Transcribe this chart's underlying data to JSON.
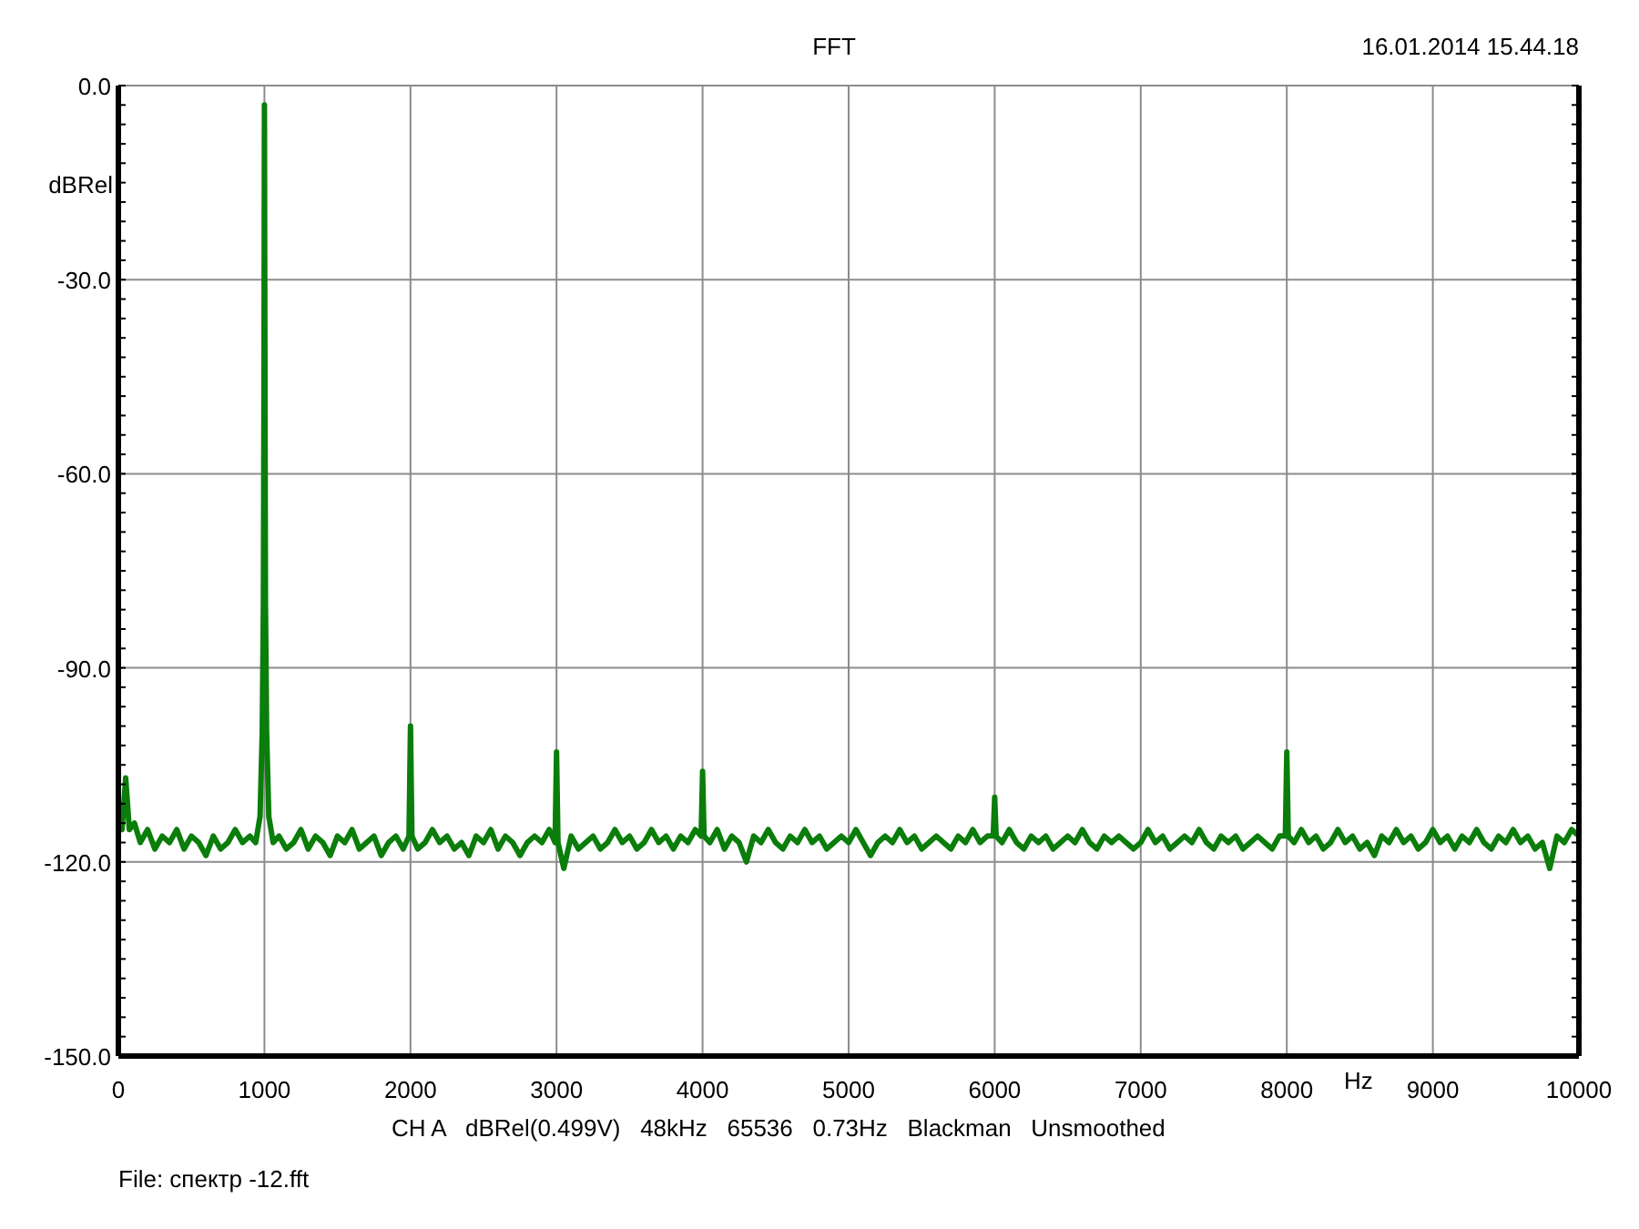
{
  "chart_data": {
    "type": "line",
    "title": "FFT",
    "xlabel": "Hz",
    "ylabel": "dBRel",
    "annotations": [
      "16.01.2014 15.44.18",
      "CH A   dBRel(0.499V)   48kHz   65536   0.73Hz   Blackman   Unsmoothed",
      "File: спектр -12.fft"
    ],
    "x": [
      0,
      25,
      50,
      75,
      110,
      150,
      200,
      250,
      300,
      350,
      400,
      450,
      500,
      550,
      600,
      650,
      700,
      750,
      800,
      850,
      900,
      940,
      970,
      985,
      993,
      997,
      1000,
      1003,
      1007,
      1015,
      1030,
      1060,
      1100,
      1150,
      1200,
      1250,
      1300,
      1350,
      1400,
      1450,
      1500,
      1550,
      1600,
      1650,
      1700,
      1750,
      1800,
      1850,
      1900,
      1950,
      1990,
      2000,
      2010,
      2050,
      2100,
      2150,
      2200,
      2250,
      2300,
      2350,
      2400,
      2450,
      2500,
      2550,
      2600,
      2650,
      2700,
      2750,
      2800,
      2850,
      2900,
      2950,
      2990,
      3000,
      3010,
      3050,
      3100,
      3150,
      3200,
      3250,
      3300,
      3350,
      3400,
      3450,
      3500,
      3550,
      3600,
      3650,
      3700,
      3750,
      3800,
      3850,
      3900,
      3950,
      3990,
      4000,
      4010,
      4050,
      4100,
      4150,
      4200,
      4250,
      4300,
      4350,
      4400,
      4450,
      4500,
      4550,
      4600,
      4650,
      4700,
      4750,
      4800,
      4850,
      4900,
      4950,
      5000,
      5050,
      5100,
      5150,
      5200,
      5250,
      5300,
      5350,
      5400,
      5450,
      5500,
      5550,
      5600,
      5650,
      5700,
      5750,
      5800,
      5850,
      5900,
      5950,
      5990,
      6000,
      6010,
      6050,
      6100,
      6150,
      6200,
      6250,
      6300,
      6350,
      6400,
      6450,
      6500,
      6550,
      6600,
      6650,
      6700,
      6750,
      6800,
      6850,
      6900,
      6950,
      7000,
      7050,
      7100,
      7150,
      7200,
      7250,
      7300,
      7350,
      7400,
      7450,
      7500,
      7550,
      7600,
      7650,
      7700,
      7750,
      7800,
      7850,
      7900,
      7950,
      7990,
      8000,
      8010,
      8050,
      8100,
      8150,
      8200,
      8250,
      8300,
      8350,
      8400,
      8450,
      8500,
      8550,
      8600,
      8650,
      8700,
      8750,
      8800,
      8850,
      8900,
      8950,
      9000,
      9050,
      9100,
      9150,
      9200,
      9250,
      9300,
      9350,
      9400,
      9450,
      9500,
      9550,
      9600,
      9650,
      9700,
      9750,
      9800,
      9850,
      9900,
      9950,
      10000
    ],
    "values": [
      -113,
      -115,
      -107,
      -115,
      -114,
      -117,
      -115,
      -118,
      -116,
      -117,
      -115,
      -118,
      -116,
      -117,
      -119,
      -116,
      -118,
      -117,
      -115,
      -117,
      -116,
      -117,
      -113,
      -100,
      -80,
      -45,
      -3,
      -38,
      -80,
      -100,
      -113,
      -117,
      -116,
      -118,
      -117,
      -115,
      -118,
      -116,
      -117,
      -119,
      -116,
      -117,
      -115,
      -118,
      -117,
      -116,
      -119,
      -117,
      -116,
      -118,
      -116,
      -99,
      -116,
      -118,
      -117,
      -115,
      -117,
      -116,
      -118,
      -117,
      -119,
      -116,
      -117,
      -115,
      -118,
      -116,
      -117,
      -119,
      -117,
      -116,
      -117,
      -115,
      -117,
      -103,
      -117,
      -121,
      -116,
      -118,
      -117,
      -116,
      -118,
      -117,
      -115,
      -117,
      -116,
      -118,
      -117,
      -115,
      -117,
      -116,
      -118,
      -116,
      -117,
      -115,
      -116,
      -106,
      -116,
      -117,
      -115,
      -118,
      -116,
      -117,
      -120,
      -116,
      -117,
      -115,
      -117,
      -118,
      -116,
      -117,
      -115,
      -117,
      -116,
      -118,
      -117,
      -116,
      -117,
      -115,
      -117,
      -119,
      -117,
      -116,
      -117,
      -115,
      -117,
      -116,
      -118,
      -117,
      -116,
      -117,
      -118,
      -116,
      -117,
      -115,
      -117,
      -116,
      -116,
      -110,
      -116,
      -117,
      -115,
      -117,
      -118,
      -116,
      -117,
      -116,
      -118,
      -117,
      -116,
      -117,
      -115,
      -117,
      -118,
      -116,
      -117,
      -116,
      -117,
      -118,
      -117,
      -115,
      -117,
      -116,
      -118,
      -117,
      -116,
      -117,
      -115,
      -117,
      -118,
      -116,
      -117,
      -116,
      -118,
      -117,
      -116,
      -117,
      -118,
      -116,
      -116,
      -103,
      -116,
      -117,
      -115,
      -117,
      -116,
      -118,
      -117,
      -115,
      -117,
      -116,
      -118,
      -117,
      -119,
      -116,
      -117,
      -115,
      -117,
      -116,
      -118,
      -117,
      -115,
      -117,
      -116,
      -118,
      -116,
      -117,
      -115,
      -117,
      -118,
      -116,
      -117,
      -115,
      -117,
      -116,
      -118,
      -117,
      -121,
      -116,
      -117,
      -115,
      -116
    ],
    "color": "#0a7d0a",
    "line_style": "solid",
    "grid": true,
    "xlim": [
      0,
      10000
    ],
    "xticks": [
      0,
      1000,
      2000,
      3000,
      4000,
      5000,
      6000,
      7000,
      8000,
      9000,
      10000
    ],
    "ylim": [
      -150,
      0
    ],
    "yticks": [
      {
        "value": 0,
        "label": "0.0"
      },
      {
        "value": -3,
        "label": null
      },
      {
        "value": -6,
        "label": null
      },
      {
        "value": -9,
        "label": null
      },
      {
        "value": -12,
        "label": null
      },
      {
        "value": -15,
        "label": null
      },
      {
        "value": -18,
        "label": null
      },
      {
        "value": -21,
        "label": null
      },
      {
        "value": -24,
        "label": null
      },
      {
        "value": -27,
        "label": null
      },
      {
        "value": -30,
        "label": "-30.0"
      },
      {
        "value": -33,
        "label": null
      },
      {
        "value": -36,
        "label": null
      },
      {
        "value": -39,
        "label": null
      },
      {
        "value": -42,
        "label": null
      },
      {
        "value": -45,
        "label": null
      },
      {
        "value": -48,
        "label": null
      },
      {
        "value": -51,
        "label": null
      },
      {
        "value": -54,
        "label": null
      },
      {
        "value": -57,
        "label": null
      },
      {
        "value": -60,
        "label": "-60.0"
      },
      {
        "value": -63,
        "label": null
      },
      {
        "value": -66,
        "label": null
      },
      {
        "value": -69,
        "label": null
      },
      {
        "value": -72,
        "label": null
      },
      {
        "value": -75,
        "label": null
      },
      {
        "value": -78,
        "label": null
      },
      {
        "value": -81,
        "label": null
      },
      {
        "value": -84,
        "label": null
      },
      {
        "value": -87,
        "label": null
      },
      {
        "value": -90,
        "label": "-90.0"
      },
      {
        "value": -93,
        "label": null
      },
      {
        "value": -96,
        "label": null
      },
      {
        "value": -99,
        "label": null
      },
      {
        "value": -102,
        "label": null
      },
      {
        "value": -105,
        "label": null
      },
      {
        "value": -108,
        "label": null
      },
      {
        "value": -111,
        "label": null
      },
      {
        "value": -114,
        "label": null
      },
      {
        "value": -117,
        "label": null
      },
      {
        "value": -120,
        "label": "-120.0"
      },
      {
        "value": -123,
        "label": null
      },
      {
        "value": -126,
        "label": null
      },
      {
        "value": -129,
        "label": null
      },
      {
        "value": -132,
        "label": null
      },
      {
        "value": -135,
        "label": null
      },
      {
        "value": -138,
        "label": null
      },
      {
        "value": -141,
        "label": null
      },
      {
        "value": -144,
        "label": null
      },
      {
        "value": -147,
        "label": null
      },
      {
        "value": -150,
        "label": "-150.0"
      }
    ]
  }
}
